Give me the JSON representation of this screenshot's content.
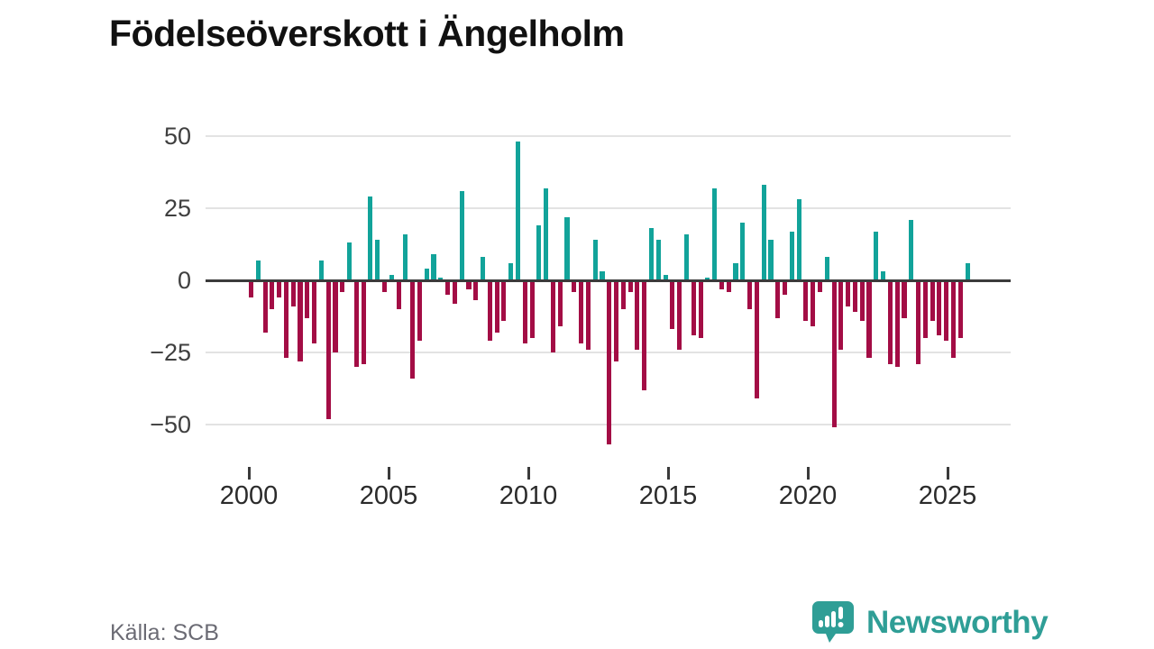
{
  "title": "Födelseöverskott i Ängelholm",
  "source": "Källa: SCB",
  "logo": {
    "name": "Newsworthy"
  },
  "colors": {
    "positive": "#12a39a",
    "negative": "#a30d45",
    "zero_line": "#3b3b3b",
    "grid": "#e3e3e3",
    "logo_teal": "#2f9e96"
  },
  "chart_data": {
    "type": "bar",
    "title": "Födelseöverskott i Ängelholm",
    "x_unit": "quarter",
    "start_year": 2000,
    "start_quarter": 1,
    "end_label": "2025 Q3",
    "x_tick_labels": [
      "2000",
      "2005",
      "2010",
      "2015",
      "2020",
      "2025"
    ],
    "y_ticks": [
      50,
      25,
      0,
      -25,
      -50
    ],
    "ylim": [
      -60,
      55
    ],
    "grid": true,
    "legend": "none",
    "values": [
      -6,
      7,
      -18,
      -10,
      -6,
      -27,
      -9,
      -28,
      -13,
      -22,
      7,
      -48,
      -25,
      -4,
      13,
      -30,
      -29,
      29,
      14,
      -4,
      2,
      -10,
      16,
      -34,
      -21,
      4,
      9,
      1,
      -5,
      -8,
      31,
      -3,
      -7,
      8,
      -21,
      -18,
      -14,
      6,
      48,
      -22,
      -20,
      19,
      32,
      -25,
      -16,
      22,
      -4,
      -22,
      -24,
      14,
      3,
      -57,
      -28,
      -10,
      -4,
      -24,
      -38,
      18,
      14,
      2,
      -17,
      -24,
      16,
      -19,
      -20,
      1,
      32,
      -3,
      -4,
      6,
      20,
      -10,
      -41,
      33,
      14,
      -13,
      -5,
      17,
      28,
      -14,
      -16,
      -4,
      8,
      -51,
      -24,
      -9,
      -11,
      -14,
      -27,
      17,
      3,
      -29,
      -30,
      -13,
      21,
      -29,
      -20,
      -14,
      -19,
      -21,
      -27,
      -20,
      6
    ]
  }
}
